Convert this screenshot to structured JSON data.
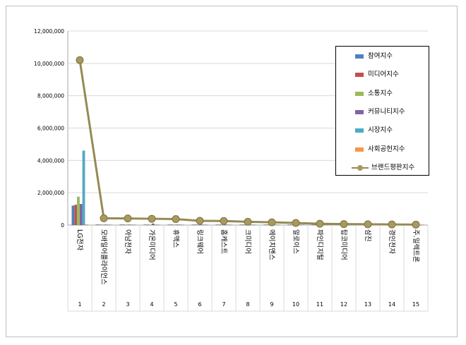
{
  "chart_data": {
    "type": "bar",
    "categories": [
      "1",
      "2",
      "3",
      "4",
      "5",
      "6",
      "7",
      "8",
      "9",
      "10",
      "11",
      "12",
      "13",
      "14",
      "15"
    ],
    "brands": [
      "LG전자",
      "모바일어플라이언스",
      "아남전자",
      "가온미디어",
      "휴맥스",
      "링크웨어",
      "홈캐스트",
      "크미디어",
      "에이치앤스",
      "알로이스",
      "파인디지털",
      "탑코미디어",
      "삼진",
      "경인전자",
      "주.일렉트론"
    ],
    "yticks": [
      "0",
      "2,000,000",
      "4,000,000",
      "6,000,000",
      "8,000,000",
      "10,000,000",
      "12,000,000"
    ],
    "ylim": [
      0,
      12000000
    ],
    "series": [
      {
        "name": "참여지수",
        "color": "#4f81bd",
        "values": [
          1200000,
          30000,
          30000,
          20000,
          20000,
          15000,
          15000,
          10000,
          10000,
          10000,
          5000,
          5000,
          5000,
          5000,
          5000
        ]
      },
      {
        "name": "미디어지수",
        "color": "#c0504d",
        "values": [
          1250000,
          20000,
          20000,
          20000,
          15000,
          10000,
          10000,
          10000,
          5000,
          5000,
          5000,
          5000,
          5000,
          5000,
          5000
        ]
      },
      {
        "name": "소통지수",
        "color": "#9bbb59",
        "values": [
          1750000,
          20000,
          20000,
          15000,
          15000,
          10000,
          10000,
          10000,
          5000,
          5000,
          5000,
          5000,
          5000,
          5000,
          5000
        ]
      },
      {
        "name": "커뮤니티지수",
        "color": "#8064a2",
        "values": [
          1300000,
          20000,
          20000,
          90000,
          20000,
          10000,
          10000,
          10000,
          5000,
          5000,
          5000,
          5000,
          5000,
          5000,
          5000
        ]
      },
      {
        "name": "시장지수",
        "color": "#4bacc6",
        "values": [
          4600000,
          20000,
          20000,
          20000,
          15000,
          10000,
          10000,
          10000,
          5000,
          5000,
          5000,
          5000,
          5000,
          5000,
          5000
        ]
      },
      {
        "name": "사회공헌지수",
        "color": "#f79646",
        "values": [
          30000,
          5000,
          5000,
          5000,
          5000,
          5000,
          5000,
          5000,
          5000,
          5000,
          5000,
          5000,
          5000,
          5000,
          5000
        ]
      }
    ],
    "line_series": {
      "name": "브랜드평판지수",
      "color": "#948a54",
      "marker_color": "#a89a5f",
      "values": [
        10200000,
        420000,
        410000,
        390000,
        370000,
        260000,
        250000,
        200000,
        170000,
        130000,
        80000,
        60000,
        50000,
        40000,
        30000
      ]
    },
    "legend_position": "top-right",
    "grid": true
  }
}
